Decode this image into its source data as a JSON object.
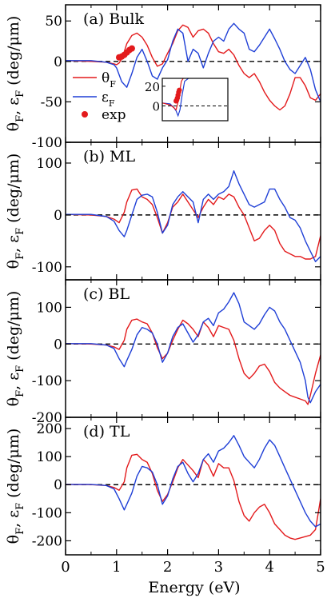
{
  "figure": {
    "xlabel": "Energy (eV)",
    "ylabel_panel_text": "θ",
    "ylabel_sub1": "F",
    "ylabel_mid": ", ε",
    "ylabel_sub2": "F",
    "ylabel_unit": " (deg/μm)"
  },
  "chart_data": [
    {
      "type": "line",
      "label": "(a) Bulk",
      "xlim": [
        0,
        5
      ],
      "ylim": [
        -100,
        70
      ],
      "x_ticks": [
        0,
        1,
        2,
        3,
        4,
        5
      ],
      "x_tick_labels": [
        "",
        "",
        "",
        "",
        "",
        ""
      ],
      "y_ticks": [
        -100,
        -50,
        0,
        50
      ],
      "y_tick_labels": [
        "-100",
        "-50",
        "0",
        "50"
      ],
      "zero_line": "dashed",
      "legend": {
        "position": "lower-left",
        "entries": [
          {
            "label": "θ",
            "sub": "F",
            "color": "#e31a1c",
            "kind": "line"
          },
          {
            "label": "ε",
            "sub": "F",
            "color": "#1f3fd6",
            "kind": "line"
          },
          {
            "label": "exp",
            "sub": "",
            "color": "#e31a1c",
            "kind": "point"
          }
        ]
      },
      "series": [
        {
          "key": "theta",
          "color": "#e31a1c",
          "x": [
            0,
            0.5,
            0.8,
            0.95,
            1.0,
            1.05,
            1.1,
            1.15,
            1.2,
            1.3,
            1.4,
            1.5,
            1.6,
            1.7,
            1.8,
            1.9,
            2.0,
            2.1,
            2.2,
            2.3,
            2.4,
            2.5,
            2.6,
            2.7,
            2.8,
            2.9,
            3.0,
            3.1,
            3.2,
            3.3,
            3.4,
            3.5,
            3.6,
            3.7,
            3.8,
            3.9,
            4.0,
            4.1,
            4.2,
            4.3,
            4.4,
            4.5,
            4.6,
            4.7,
            4.8,
            4.9,
            5.0
          ],
          "y": [
            1,
            0,
            -1,
            -3,
            -4,
            -2,
            3,
            12,
            22,
            32,
            35,
            30,
            20,
            5,
            -6,
            -3,
            10,
            22,
            38,
            45,
            42,
            30,
            38,
            40,
            35,
            22,
            12,
            10,
            15,
            8,
            -5,
            -15,
            -20,
            -15,
            -25,
            -38,
            -48,
            -55,
            -60,
            -55,
            -40,
            -20,
            -20,
            -30,
            -45,
            -48,
            -40
          ]
        },
        {
          "key": "epsilon",
          "color": "#1f3fd6",
          "x": [
            0,
            0.5,
            0.8,
            0.95,
            1.0,
            1.1,
            1.2,
            1.3,
            1.4,
            1.5,
            1.6,
            1.7,
            1.8,
            1.9,
            2.0,
            2.1,
            2.2,
            2.3,
            2.4,
            2.5,
            2.6,
            2.7,
            2.8,
            2.9,
            3.0,
            3.1,
            3.2,
            3.3,
            3.4,
            3.5,
            3.6,
            3.7,
            3.8,
            3.9,
            4.0,
            4.1,
            4.2,
            4.3,
            4.4,
            4.5,
            4.6,
            4.7,
            4.8,
            4.9,
            5.0
          ],
          "y": [
            1,
            1,
            -1,
            -4,
            -8,
            -25,
            -32,
            -15,
            5,
            15,
            0,
            -18,
            -22,
            -8,
            2,
            25,
            40,
            35,
            0,
            15,
            10,
            -8,
            10,
            25,
            30,
            25,
            40,
            47,
            40,
            35,
            15,
            12,
            20,
            30,
            40,
            28,
            15,
            0,
            -10,
            -15,
            -5,
            5,
            -10,
            -35,
            -50
          ]
        },
        {
          "key": "exp",
          "color": "#e31a1c",
          "kind": "points",
          "x": [
            1.05,
            1.1,
            1.15,
            1.2,
            1.25,
            1.3
          ],
          "y": [
            5,
            6,
            8,
            11,
            14,
            16
          ]
        }
      ],
      "inset": {
        "xlim": [
          0,
          5
        ],
        "ylim": [
          -15,
          28
        ],
        "y_ticks": [
          0,
          20
        ],
        "y_tick_labels": [
          "0",
          "20"
        ],
        "theta_x": [
          0,
          0.6,
          0.9,
          1.05,
          1.2,
          1.3,
          1.45,
          1.6
        ],
        "theta_y": [
          3,
          1,
          -2,
          -4,
          4,
          12,
          25,
          28
        ],
        "eps_x": [
          0,
          0.6,
          0.9,
          1.05,
          1.2,
          1.35,
          1.5,
          1.7,
          2.0
        ],
        "eps_y": [
          3,
          2,
          -2,
          -5,
          -10,
          -4,
          10,
          25,
          28
        ],
        "exp_x": [
          1.05,
          1.1,
          1.15,
          1.2,
          1.25,
          1.3
        ],
        "exp_y": [
          5,
          6,
          8,
          11,
          14,
          16
        ]
      }
    },
    {
      "type": "line",
      "label": "(b) ML",
      "xlim": [
        0,
        5
      ],
      "ylim": [
        -125,
        140
      ],
      "x_ticks": [
        0,
        1,
        2,
        3,
        4,
        5
      ],
      "x_tick_labels": [
        "",
        "",
        "",
        "",
        "",
        ""
      ],
      "y_ticks": [
        -100,
        0,
        100
      ],
      "y_tick_labels": [
        "-100",
        "0",
        "100"
      ],
      "zero_line": "dashed",
      "series": [
        {
          "key": "theta",
          "color": "#e31a1c",
          "x": [
            0,
            0.5,
            0.8,
            0.95,
            1.05,
            1.15,
            1.2,
            1.3,
            1.4,
            1.5,
            1.6,
            1.7,
            1.8,
            1.9,
            2.0,
            2.1,
            2.2,
            2.3,
            2.4,
            2.5,
            2.6,
            2.7,
            2.8,
            2.9,
            3.0,
            3.1,
            3.2,
            3.3,
            3.4,
            3.5,
            3.6,
            3.7,
            3.8,
            3.9,
            4.0,
            4.1,
            4.2,
            4.3,
            4.4,
            4.5,
            4.6,
            4.7,
            4.8,
            4.9,
            5.0
          ],
          "y": [
            1,
            0,
            -3,
            -8,
            -15,
            5,
            25,
            48,
            50,
            35,
            30,
            20,
            -5,
            -35,
            -15,
            15,
            25,
            40,
            25,
            10,
            -5,
            15,
            30,
            20,
            35,
            30,
            40,
            35,
            15,
            0,
            -25,
            -50,
            -45,
            -30,
            -20,
            -30,
            -55,
            -70,
            -75,
            -80,
            -80,
            -85,
            -85,
            -80,
            -40
          ]
        },
        {
          "key": "epsilon",
          "color": "#1f3fd6",
          "x": [
            0,
            0.5,
            0.8,
            0.95,
            1.05,
            1.15,
            1.2,
            1.3,
            1.4,
            1.5,
            1.6,
            1.7,
            1.8,
            1.9,
            2.0,
            2.1,
            2.2,
            2.3,
            2.4,
            2.5,
            2.6,
            2.7,
            2.8,
            2.9,
            3.0,
            3.1,
            3.2,
            3.3,
            3.4,
            3.5,
            3.6,
            3.7,
            3.8,
            3.9,
            4.0,
            4.1,
            4.2,
            4.3,
            4.4,
            4.5,
            4.6,
            4.7,
            4.8,
            4.9,
            5.0
          ],
          "y": [
            1,
            1,
            -3,
            -12,
            -30,
            -42,
            -30,
            0,
            30,
            38,
            40,
            35,
            5,
            -35,
            -20,
            20,
            35,
            45,
            35,
            25,
            -15,
            30,
            40,
            30,
            40,
            45,
            55,
            85,
            60,
            40,
            20,
            15,
            20,
            25,
            50,
            50,
            30,
            15,
            -5,
            -10,
            -25,
            -50,
            -70,
            -90,
            -80
          ]
        }
      ]
    },
    {
      "type": "line",
      "label": "(c) BL",
      "xlim": [
        0,
        5
      ],
      "ylim": [
        -200,
        175
      ],
      "x_ticks": [
        0,
        1,
        2,
        3,
        4,
        5
      ],
      "x_tick_labels": [
        "",
        "",
        "",
        "",
        "",
        ""
      ],
      "y_ticks": [
        -200,
        -100,
        0,
        100
      ],
      "y_tick_labels": [
        "-200",
        "-100",
        "0",
        "100"
      ],
      "zero_line": "dashed",
      "series": [
        {
          "key": "theta",
          "color": "#e31a1c",
          "x": [
            0,
            0.5,
            0.8,
            0.95,
            1.05,
            1.15,
            1.2,
            1.3,
            1.4,
            1.5,
            1.6,
            1.7,
            1.8,
            1.9,
            2.0,
            2.1,
            2.2,
            2.3,
            2.4,
            2.5,
            2.6,
            2.7,
            2.8,
            2.9,
            3.0,
            3.1,
            3.2,
            3.3,
            3.4,
            3.5,
            3.6,
            3.7,
            3.8,
            3.9,
            4.0,
            4.1,
            4.2,
            4.3,
            4.4,
            4.5,
            4.6,
            4.7,
            4.75,
            4.8,
            4.9,
            5.0
          ],
          "y": [
            1,
            0,
            -3,
            -8,
            -15,
            10,
            40,
            65,
            68,
            60,
            55,
            30,
            -10,
            -40,
            -25,
            10,
            40,
            65,
            55,
            40,
            20,
            60,
            45,
            20,
            50,
            45,
            40,
            10,
            -40,
            -80,
            -95,
            -80,
            -60,
            -55,
            -75,
            -105,
            -120,
            -130,
            -140,
            -145,
            -150,
            -155,
            -165,
            -140,
            -80,
            -30
          ]
        },
        {
          "key": "epsilon",
          "color": "#1f3fd6",
          "x": [
            0,
            0.5,
            0.8,
            0.95,
            1.05,
            1.15,
            1.2,
            1.3,
            1.4,
            1.5,
            1.6,
            1.7,
            1.8,
            1.9,
            2.0,
            2.1,
            2.2,
            2.3,
            2.4,
            2.5,
            2.6,
            2.7,
            2.8,
            2.9,
            3.0,
            3.1,
            3.2,
            3.3,
            3.4,
            3.5,
            3.6,
            3.7,
            3.8,
            3.9,
            4.0,
            4.1,
            4.2,
            4.3,
            4.4,
            4.5,
            4.6,
            4.7,
            4.75,
            4.8,
            4.9,
            5.0
          ],
          "y": [
            1,
            1,
            -3,
            -12,
            -40,
            -62,
            -45,
            -15,
            25,
            45,
            40,
            30,
            0,
            -50,
            -25,
            20,
            45,
            55,
            30,
            5,
            25,
            60,
            70,
            50,
            85,
            95,
            115,
            140,
            110,
            60,
            50,
            40,
            55,
            80,
            100,
            90,
            60,
            40,
            10,
            -20,
            -50,
            -100,
            -145,
            -160,
            -130,
            -110
          ]
        }
      ]
    },
    {
      "type": "line",
      "label": "(d) TL",
      "xlim": [
        0,
        5
      ],
      "ylim": [
        -250,
        240
      ],
      "x_ticks": [
        0,
        1,
        2,
        3,
        4,
        5
      ],
      "x_tick_labels": [
        "0",
        "1",
        "2",
        "3",
        "4",
        "5"
      ],
      "y_ticks": [
        -200,
        -100,
        0,
        100,
        200
      ],
      "y_tick_labels": [
        "-200",
        "-100",
        "0",
        "100",
        "200"
      ],
      "zero_line": "dashed",
      "series": [
        {
          "key": "theta",
          "color": "#e31a1c",
          "x": [
            0,
            0.5,
            0.8,
            0.95,
            1.05,
            1.15,
            1.2,
            1.3,
            1.4,
            1.5,
            1.6,
            1.7,
            1.8,
            1.9,
            2.0,
            2.1,
            2.2,
            2.3,
            2.4,
            2.5,
            2.6,
            2.7,
            2.8,
            2.9,
            3.0,
            3.1,
            3.2,
            3.3,
            3.4,
            3.5,
            3.6,
            3.7,
            3.8,
            3.9,
            4.0,
            4.1,
            4.2,
            4.3,
            4.4,
            4.5,
            4.6,
            4.7,
            4.8,
            4.9,
            5.0
          ],
          "y": [
            1,
            0,
            -3,
            -10,
            -20,
            10,
            60,
            105,
            108,
            90,
            80,
            40,
            -20,
            -60,
            -35,
            10,
            60,
            90,
            70,
            50,
            25,
            90,
            70,
            30,
            75,
            60,
            60,
            15,
            -60,
            -110,
            -130,
            -100,
            -80,
            -70,
            -100,
            -140,
            -160,
            -180,
            -190,
            -195,
            -190,
            -185,
            -180,
            -160,
            -50
          ]
        },
        {
          "key": "epsilon",
          "color": "#1f3fd6",
          "x": [
            0,
            0.5,
            0.8,
            0.95,
            1.05,
            1.15,
            1.2,
            1.3,
            1.4,
            1.5,
            1.6,
            1.7,
            1.8,
            1.9,
            2.0,
            2.1,
            2.2,
            2.3,
            2.4,
            2.5,
            2.6,
            2.7,
            2.8,
            2.9,
            3.0,
            3.1,
            3.2,
            3.3,
            3.4,
            3.5,
            3.6,
            3.7,
            3.8,
            3.9,
            4.0,
            4.1,
            4.2,
            4.3,
            4.4,
            4.5,
            4.6,
            4.7,
            4.8,
            4.9,
            5.0
          ],
          "y": [
            1,
            1,
            -3,
            -15,
            -50,
            -90,
            -70,
            -30,
            30,
            65,
            60,
            45,
            0,
            -70,
            -40,
            20,
            65,
            80,
            40,
            10,
            40,
            90,
            110,
            80,
            120,
            130,
            150,
            175,
            140,
            100,
            80,
            60,
            90,
            130,
            160,
            140,
            100,
            60,
            20,
            -20,
            -60,
            -100,
            -130,
            -150,
            -140
          ]
        }
      ]
    }
  ]
}
